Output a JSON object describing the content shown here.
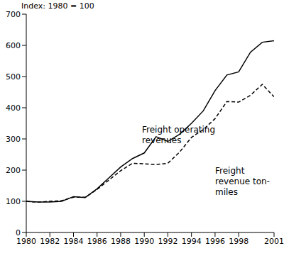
{
  "chart_data": {
    "type": "line",
    "y_label": "Index: 1980 = 100",
    "x": [
      1980,
      1981,
      1982,
      1983,
      1984,
      1985,
      1986,
      1987,
      1988,
      1989,
      1990,
      1991,
      1992,
      1993,
      1994,
      1995,
      1996,
      1997,
      1998,
      1999,
      2000,
      2001
    ],
    "series": [
      {
        "name": "Freight operating revenues",
        "color": "#000000",
        "line_style": "solid",
        "values": [
          100,
          98,
          98,
          100,
          115,
          112,
          140,
          175,
          210,
          237,
          255,
          307,
          292,
          315,
          350,
          390,
          455,
          505,
          515,
          578,
          610,
          615
        ]
      },
      {
        "name": "Freight revenue ton-miles",
        "color": "#000000",
        "line_style": "dashed",
        "values": [
          100,
          97,
          100,
          102,
          113,
          113,
          138,
          168,
          198,
          222,
          220,
          218,
          222,
          258,
          305,
          330,
          365,
          420,
          418,
          440,
          475,
          435
        ]
      }
    ],
    "xlim": [
      1980,
      2001
    ],
    "xticks": [
      1980,
      1982,
      1984,
      1986,
      1988,
      1990,
      1992,
      1994,
      1996,
      1998,
      2001
    ],
    "ylim": [
      0,
      700
    ],
    "yticks": [
      0,
      100,
      200,
      300,
      400,
      500,
      600,
      700
    ],
    "grid": false
  }
}
